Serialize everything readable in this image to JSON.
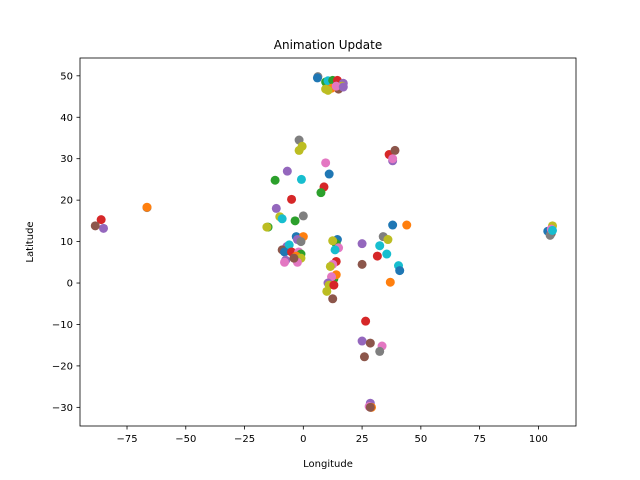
{
  "chart_data": {
    "type": "scatter",
    "title": "Animation Update",
    "xlabel": "Longitude",
    "ylabel": "Latitude",
    "xlim": [
      -95,
      116
    ],
    "ylim": [
      -34.5,
      54.3
    ],
    "xticks": [
      -75,
      -50,
      -25,
      0,
      25,
      50,
      75,
      100
    ],
    "yticks": [
      -30,
      -20,
      -10,
      0,
      10,
      20,
      30,
      40,
      50
    ],
    "xtick_labels": [
      "−75",
      "−50",
      "−25",
      "0",
      "25",
      "50",
      "75",
      "100"
    ],
    "ytick_labels": [
      "−30",
      "−20",
      "−10",
      "0",
      "10",
      "20",
      "30",
      "40",
      "50"
    ],
    "grid": false,
    "palette": [
      "#1f77b4",
      "#ff7f0e",
      "#2ca02c",
      "#d62728",
      "#9467bd",
      "#8c564b",
      "#e377c2",
      "#7f7f7f",
      "#bcbd22",
      "#17becf"
    ],
    "points": [
      {
        "x": 6.2,
        "y": 49.8,
        "c": 7
      },
      {
        "x": 6.0,
        "y": 49.5,
        "c": 0
      },
      {
        "x": 9.5,
        "y": 48.5,
        "c": 2
      },
      {
        "x": 10.5,
        "y": 48.8,
        "c": 9
      },
      {
        "x": 12.5,
        "y": 48.9,
        "c": 2
      },
      {
        "x": 14.5,
        "y": 48.9,
        "c": 3
      },
      {
        "x": 17.0,
        "y": 48.2,
        "c": 4
      },
      {
        "x": 16.5,
        "y": 47.5,
        "c": 8
      },
      {
        "x": 15.0,
        "y": 46.8,
        "c": 5
      },
      {
        "x": 12.0,
        "y": 47.0,
        "c": 1
      },
      {
        "x": 10.5,
        "y": 46.5,
        "c": 8
      },
      {
        "x": 9.5,
        "y": 46.8,
        "c": 8
      },
      {
        "x": 14.0,
        "y": 47.5,
        "c": 6
      },
      {
        "x": 17.0,
        "y": 47.3,
        "c": 4
      },
      {
        "x": -1.8,
        "y": 34.5,
        "c": 7
      },
      {
        "x": -0.5,
        "y": 33.0,
        "c": 8
      },
      {
        "x": -1.8,
        "y": 32.0,
        "c": 8
      },
      {
        "x": 9.5,
        "y": 29.0,
        "c": 6
      },
      {
        "x": -0.8,
        "y": 25.0,
        "c": 9
      },
      {
        "x": 11.0,
        "y": 26.3,
        "c": 0
      },
      {
        "x": -6.8,
        "y": 27.0,
        "c": 4
      },
      {
        "x": -12.0,
        "y": 24.8,
        "c": 2
      },
      {
        "x": 8.8,
        "y": 23.2,
        "c": 3
      },
      {
        "x": 7.5,
        "y": 21.8,
        "c": 2
      },
      {
        "x": -5.0,
        "y": 20.2,
        "c": 3
      },
      {
        "x": -11.5,
        "y": 18.0,
        "c": 4
      },
      {
        "x": 0.0,
        "y": 16.2,
        "c": 7
      },
      {
        "x": -10.0,
        "y": 16.0,
        "c": 8
      },
      {
        "x": -9.0,
        "y": 15.5,
        "c": 9
      },
      {
        "x": -3.5,
        "y": 15.0,
        "c": 2
      },
      {
        "x": -15.0,
        "y": 13.5,
        "c": 2
      },
      {
        "x": -15.5,
        "y": 13.5,
        "c": 8
      },
      {
        "x": -3.0,
        "y": 11.2,
        "c": 0
      },
      {
        "x": 0.0,
        "y": 11.2,
        "c": 1
      },
      {
        "x": -2.5,
        "y": 10.5,
        "c": 4
      },
      {
        "x": -1.0,
        "y": 10.0,
        "c": 7
      },
      {
        "x": -7.0,
        "y": 8.8,
        "c": 4
      },
      {
        "x": -6.0,
        "y": 9.2,
        "c": 9
      },
      {
        "x": -9.0,
        "y": 8.0,
        "c": 5
      },
      {
        "x": -8.0,
        "y": 7.5,
        "c": 0
      },
      {
        "x": -5.0,
        "y": 7.5,
        "c": 3
      },
      {
        "x": -2.0,
        "y": 7.5,
        "c": 6
      },
      {
        "x": -1.0,
        "y": 7.0,
        "c": 2
      },
      {
        "x": -3.0,
        "y": 6.5,
        "c": 1
      },
      {
        "x": -1.0,
        "y": 6.0,
        "c": 8
      },
      {
        "x": -7.5,
        "y": 5.5,
        "c": 4
      },
      {
        "x": -8.0,
        "y": 5.0,
        "c": 6
      },
      {
        "x": -2.5,
        "y": 5.0,
        "c": 6
      },
      {
        "x": -4.0,
        "y": 6.0,
        "c": 5
      },
      {
        "x": 14.5,
        "y": 10.5,
        "c": 0
      },
      {
        "x": 14.0,
        "y": 9.5,
        "c": 2
      },
      {
        "x": 12.5,
        "y": 10.2,
        "c": 8
      },
      {
        "x": 15.0,
        "y": 8.5,
        "c": 6
      },
      {
        "x": 13.5,
        "y": 8.0,
        "c": 9
      },
      {
        "x": 14.0,
        "y": 5.2,
        "c": 3
      },
      {
        "x": 12.5,
        "y": 4.5,
        "c": 6
      },
      {
        "x": 11.5,
        "y": 4.0,
        "c": 8
      },
      {
        "x": 13.0,
        "y": 1.0,
        "c": 2
      },
      {
        "x": 14.0,
        "y": 2.0,
        "c": 1
      },
      {
        "x": 12.0,
        "y": 1.5,
        "c": 6
      },
      {
        "x": 10.5,
        "y": 0.0,
        "c": 4
      },
      {
        "x": 11.0,
        "y": -0.5,
        "c": 8
      },
      {
        "x": 13.0,
        "y": -0.5,
        "c": 3
      },
      {
        "x": 10.0,
        "y": -2.0,
        "c": 8
      },
      {
        "x": 12.5,
        "y": -3.8,
        "c": 5
      },
      {
        "x": 36.5,
        "y": 31.0,
        "c": 3
      },
      {
        "x": 39.0,
        "y": 32.0,
        "c": 5
      },
      {
        "x": 38.0,
        "y": 29.5,
        "c": 4
      },
      {
        "x": 38.0,
        "y": 30.0,
        "c": 6
      },
      {
        "x": 38.0,
        "y": 14.0,
        "c": 0
      },
      {
        "x": 44.0,
        "y": 14.0,
        "c": 1
      },
      {
        "x": 34.0,
        "y": 11.2,
        "c": 7
      },
      {
        "x": 36.0,
        "y": 10.5,
        "c": 8
      },
      {
        "x": 25.0,
        "y": 9.5,
        "c": 4
      },
      {
        "x": 32.5,
        "y": 9.0,
        "c": 9
      },
      {
        "x": 35.5,
        "y": 7.0,
        "c": 9
      },
      {
        "x": 31.5,
        "y": 6.5,
        "c": 3
      },
      {
        "x": 25.0,
        "y": 4.5,
        "c": 5
      },
      {
        "x": 40.5,
        "y": 4.2,
        "c": 9
      },
      {
        "x": 41.0,
        "y": 3.0,
        "c": 0
      },
      {
        "x": 37.0,
        "y": 0.2,
        "c": 1
      },
      {
        "x": 26.5,
        "y": -9.2,
        "c": 3
      },
      {
        "x": 25.0,
        "y": -14.0,
        "c": 4
      },
      {
        "x": 28.5,
        "y": -14.5,
        "c": 5
      },
      {
        "x": 33.5,
        "y": -15.2,
        "c": 6
      },
      {
        "x": 32.5,
        "y": -16.5,
        "c": 7
      },
      {
        "x": 26.0,
        "y": -17.8,
        "c": 5
      },
      {
        "x": 28.5,
        "y": -29.0,
        "c": 4
      },
      {
        "x": 28.0,
        "y": -29.8,
        "c": 6
      },
      {
        "x": 29.0,
        "y": -30.0,
        "c": 1
      },
      {
        "x": 28.5,
        "y": -30.0,
        "c": 5
      },
      {
        "x": -86.0,
        "y": 15.3,
        "c": 3
      },
      {
        "x": -85.0,
        "y": 13.2,
        "c": 4
      },
      {
        "x": -88.5,
        "y": 13.8,
        "c": 5
      },
      {
        "x": -66.5,
        "y": 18.2,
        "c": 7
      },
      {
        "x": -66.5,
        "y": 18.3,
        "c": 1
      },
      {
        "x": 104.0,
        "y": 12.5,
        "c": 0
      },
      {
        "x": 105.5,
        "y": 12.0,
        "c": 5
      },
      {
        "x": 105.0,
        "y": 11.5,
        "c": 7
      },
      {
        "x": 106.0,
        "y": 13.8,
        "c": 8
      },
      {
        "x": 105.5,
        "y": 13.0,
        "c": 6
      },
      {
        "x": 106.0,
        "y": 12.7,
        "c": 9
      }
    ]
  }
}
